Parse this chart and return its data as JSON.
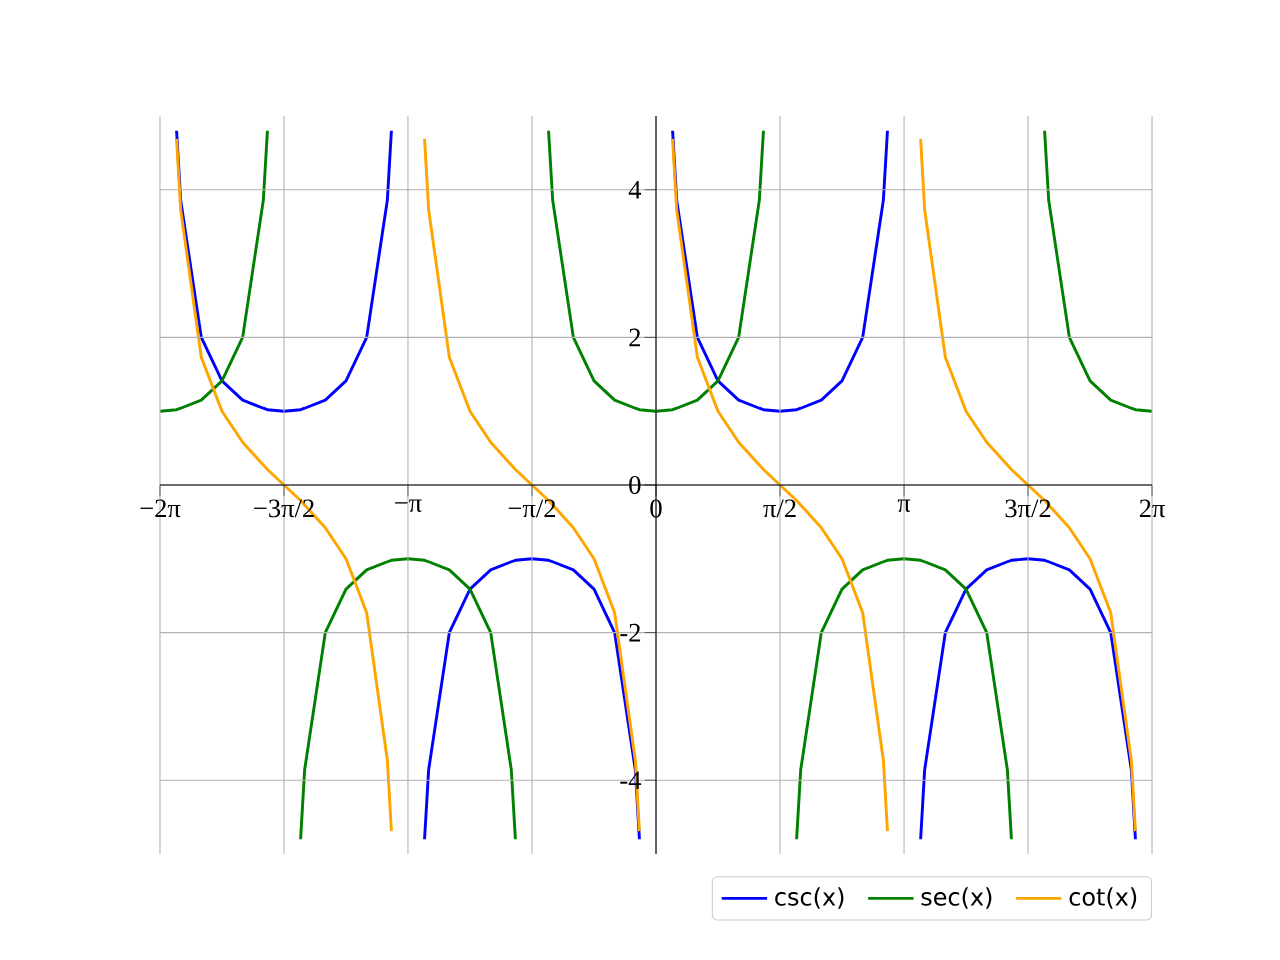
{
  "chart_data": {
    "type": "line",
    "x": [
      -6.283,
      -6.073,
      -6.021,
      -5.76,
      -5.498,
      -5.236,
      -4.974,
      -4.922,
      -4.712,
      -4.502,
      -4.451,
      -4.189,
      -3.927,
      -3.665,
      -3.403,
      -3.352,
      -3.142,
      -2.932,
      -2.88,
      -2.618,
      -2.356,
      -2.094,
      -1.833,
      -1.781,
      -1.571,
      -1.361,
      -1.309,
      -1.047,
      -0.785,
      -0.524,
      -0.262,
      -0.21,
      0,
      0.21,
      0.262,
      0.524,
      0.785,
      1.047,
      1.309,
      1.361,
      1.571,
      1.781,
      1.833,
      2.094,
      2.356,
      2.618,
      2.88,
      2.932,
      3.142,
      3.352,
      3.403,
      3.665,
      3.927,
      4.189,
      4.451,
      4.502,
      4.712,
      4.922,
      4.974,
      5.236,
      5.498,
      5.76,
      6.021,
      6.073,
      6.283
    ],
    "series": [
      {
        "name": "csc(x)",
        "color": "#0000ff",
        "values": [
          null,
          4.8,
          3.86,
          2,
          1.41,
          1.15,
          1.04,
          1.02,
          1,
          1.02,
          1.04,
          1.15,
          1.41,
          2,
          3.86,
          4.8,
          null,
          -4.8,
          -3.86,
          -2,
          -1.41,
          -1.15,
          -1.04,
          -1.02,
          -1,
          -1.02,
          -1.04,
          -1.15,
          -1.41,
          -2,
          -3.86,
          -4.8,
          null,
          4.8,
          3.86,
          2,
          1.41,
          1.15,
          1.04,
          1.02,
          1,
          1.02,
          1.04,
          1.15,
          1.41,
          2,
          3.86,
          4.8,
          null,
          -4.8,
          -3.86,
          -2,
          -1.41,
          -1.15,
          -1.04,
          -1.02,
          -1,
          -1.02,
          -1.04,
          -1.15,
          -1.41,
          -2,
          -3.86,
          -4.8,
          null
        ]
      },
      {
        "name": "sec(x)",
        "color": "#008000",
        "values": [
          1,
          1.02,
          1.04,
          1.15,
          1.41,
          2,
          3.86,
          4.8,
          null,
          -4.8,
          -3.86,
          -2,
          -1.41,
          -1.15,
          -1.04,
          -1.02,
          -1,
          -1.02,
          -1.04,
          -1.15,
          -1.41,
          -2,
          -3.86,
          -4.8,
          null,
          4.8,
          3.86,
          2,
          1.41,
          1.15,
          1.04,
          1.02,
          1,
          1.02,
          1.04,
          1.15,
          1.41,
          2,
          3.86,
          4.8,
          null,
          -4.8,
          -3.86,
          -2,
          -1.41,
          -1.15,
          -1.04,
          -1.02,
          -1,
          -1.02,
          -1.04,
          -1.15,
          -1.41,
          -2,
          -3.86,
          -4.8,
          null,
          4.8,
          3.86,
          2,
          1.41,
          1.15,
          1.04,
          1.02,
          1
        ]
      },
      {
        "name": "cot(x)",
        "color": "#ffa500",
        "values": [
          null,
          4.69,
          3.73,
          1.73,
          1,
          0.58,
          0.27,
          0.21,
          0,
          -0.21,
          -0.27,
          -0.58,
          -1,
          -1.73,
          -3.73,
          -4.69,
          null,
          4.69,
          3.73,
          1.73,
          1,
          0.58,
          0.27,
          0.21,
          0,
          -0.21,
          -0.27,
          -0.58,
          -1,
          -1.73,
          -3.73,
          -4.69,
          null,
          4.69,
          3.73,
          1.73,
          1,
          0.58,
          0.27,
          0.21,
          0,
          -0.21,
          -0.27,
          -0.58,
          -1,
          -1.73,
          -3.73,
          -4.69,
          null,
          4.69,
          3.73,
          1.73,
          1,
          0.58,
          0.27,
          0.21,
          0,
          -0.21,
          -0.27,
          -0.58,
          -1,
          -1.73,
          -3.73,
          -4.69,
          null
        ]
      }
    ],
    "xlim": [
      -6.283,
      6.283
    ],
    "ylim": [
      -5,
      5
    ],
    "xticks": [
      {
        "value": -6.283,
        "label": "−2π"
      },
      {
        "value": -4.712,
        "label": "−3π/2"
      },
      {
        "value": -3.142,
        "label": "−π"
      },
      {
        "value": -1.571,
        "label": "−π/2"
      },
      {
        "value": 0,
        "label": "0"
      },
      {
        "value": 1.571,
        "label": "π/2"
      },
      {
        "value": 3.142,
        "label": "π"
      },
      {
        "value": 4.712,
        "label": "3π/2"
      },
      {
        "value": 6.283,
        "label": "2π"
      }
    ],
    "yticks": [
      -4,
      -2,
      0,
      2,
      4
    ],
    "grid": true,
    "legend": "bottom right"
  }
}
